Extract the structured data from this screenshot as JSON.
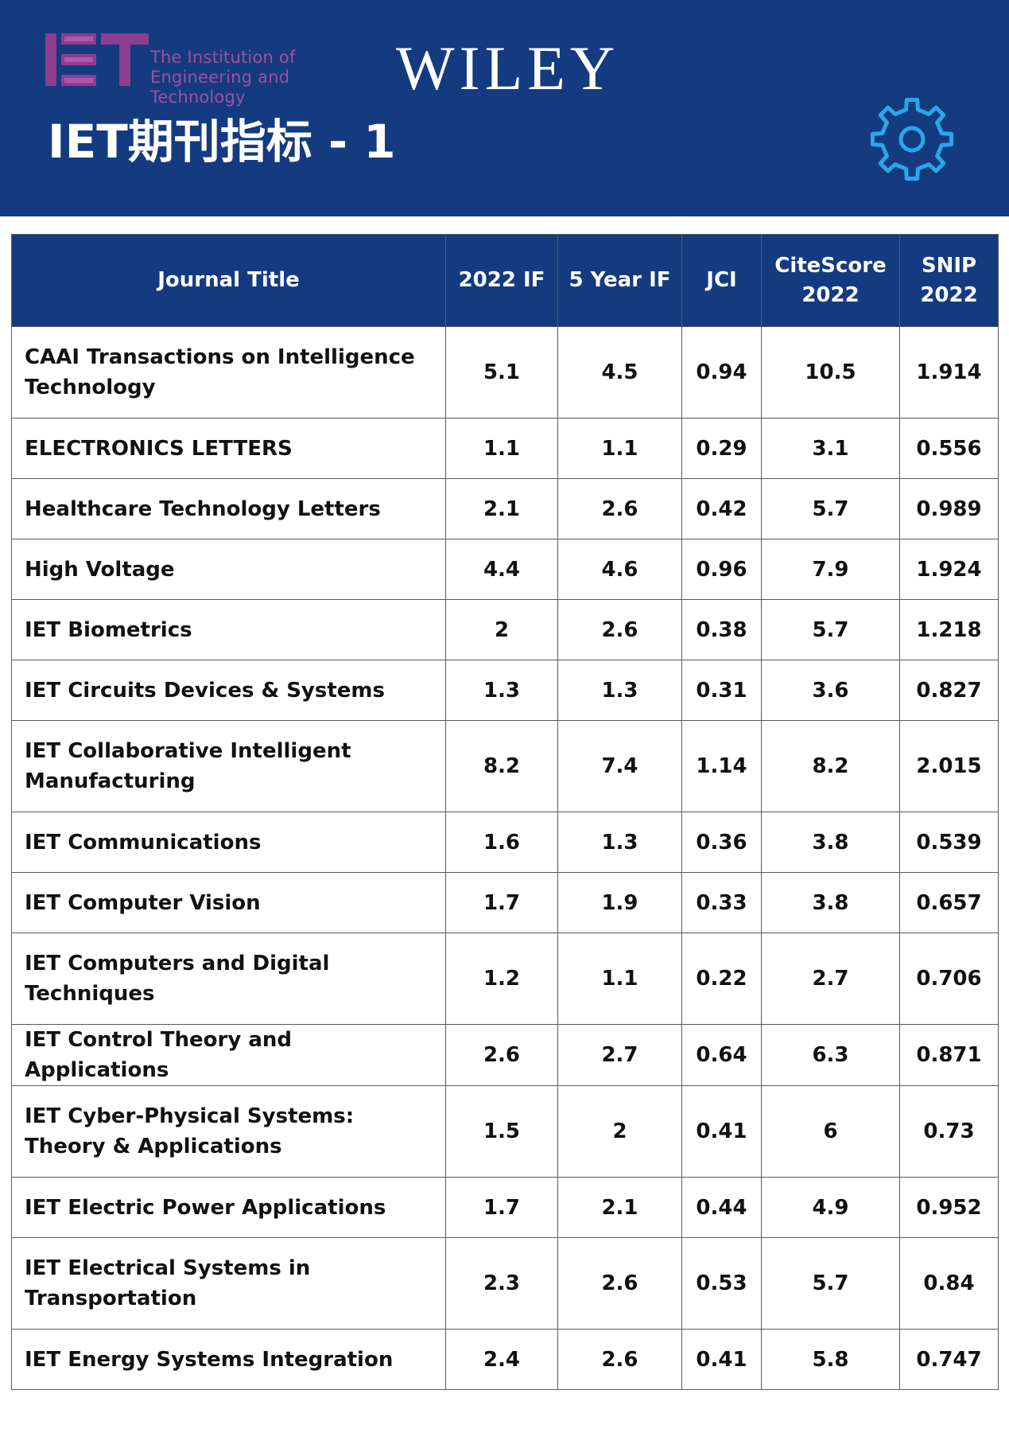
{
  "header": {
    "iet_logo_line1": "The Institution of",
    "iet_logo_line2": "Engineering and Technology",
    "publisher": "WILEY",
    "title": "IET期刊指标 - 1"
  },
  "colors": {
    "header_bg": "#143b80",
    "iet_purple": "#a24ea3",
    "gear_blue": "#2aa7e6"
  },
  "table": {
    "headers": {
      "journal_title": "Journal Title",
      "if_2022": "2022 IF",
      "if_5yr": "5 Year IF",
      "jci": "JCI",
      "citescore_l1": "CiteScore",
      "citescore_l2": "2022",
      "snip_l1": "SNIP",
      "snip_l2": "2022"
    },
    "rows": [
      {
        "title": "CAAI Transactions on Intelligence Technology",
        "if2022": "5.1",
        "if5": "4.5",
        "jci": "0.94",
        "citescore": "10.5",
        "snip": "1.914",
        "tall": true
      },
      {
        "title": "ELECTRONICS LETTERS",
        "if2022": "1.1",
        "if5": "1.1",
        "jci": "0.29",
        "citescore": "3.1",
        "snip": "0.556",
        "tall": false
      },
      {
        "title": "Healthcare Technology Letters",
        "if2022": "2.1",
        "if5": "2.6",
        "jci": "0.42",
        "citescore": "5.7",
        "snip": "0.989",
        "tall": false
      },
      {
        "title": "High Voltage",
        "if2022": "4.4",
        "if5": "4.6",
        "jci": "0.96",
        "citescore": "7.9",
        "snip": "1.924",
        "tall": false
      },
      {
        "title": "IET Biometrics",
        "if2022": "2",
        "if5": "2.6",
        "jci": "0.38",
        "citescore": "5.7",
        "snip": "1.218",
        "tall": false
      },
      {
        "title": "IET Circuits Devices & Systems",
        "if2022": "1.3",
        "if5": "1.3",
        "jci": "0.31",
        "citescore": "3.6",
        "snip": "0.827",
        "tall": false
      },
      {
        "title": "IET Collaborative Intelligent Manufacturing",
        "if2022": "8.2",
        "if5": "7.4",
        "jci": "1.14",
        "citescore": "8.2",
        "snip": "2.015",
        "tall": true
      },
      {
        "title": "IET Communications",
        "if2022": "1.6",
        "if5": "1.3",
        "jci": "0.36",
        "citescore": "3.8",
        "snip": "0.539",
        "tall": false
      },
      {
        "title": "IET Computer Vision",
        "if2022": "1.7",
        "if5": "1.9",
        "jci": "0.33",
        "citescore": "3.8",
        "snip": "0.657",
        "tall": false
      },
      {
        "title": "IET Computers and Digital Techniques",
        "if2022": "1.2",
        "if5": "1.1",
        "jci": "0.22",
        "citescore": "2.7",
        "snip": "0.706",
        "tall": true
      },
      {
        "title": "IET Control Theory and Applications",
        "if2022": "2.6",
        "if5": "2.7",
        "jci": "0.64",
        "citescore": "6.3",
        "snip": "0.871",
        "tall": false
      },
      {
        "title": "IET Cyber-Physical Systems: Theory & Applications",
        "if2022": "1.5",
        "if5": "2",
        "jci": "0.41",
        "citescore": "6",
        "snip": "0.73",
        "tall": true
      },
      {
        "title": "IET Electric Power Applications",
        "if2022": "1.7",
        "if5": "2.1",
        "jci": "0.44",
        "citescore": "4.9",
        "snip": "0.952",
        "tall": false
      },
      {
        "title": "IET Electrical Systems in Transportation",
        "if2022": "2.3",
        "if5": "2.6",
        "jci": "0.53",
        "citescore": "5.7",
        "snip": "0.84",
        "tall": true
      },
      {
        "title": "IET Energy Systems Integration",
        "if2022": "2.4",
        "if5": "2.6",
        "jci": "0.41",
        "citescore": "5.8",
        "snip": "0.747",
        "tall": false
      }
    ]
  }
}
